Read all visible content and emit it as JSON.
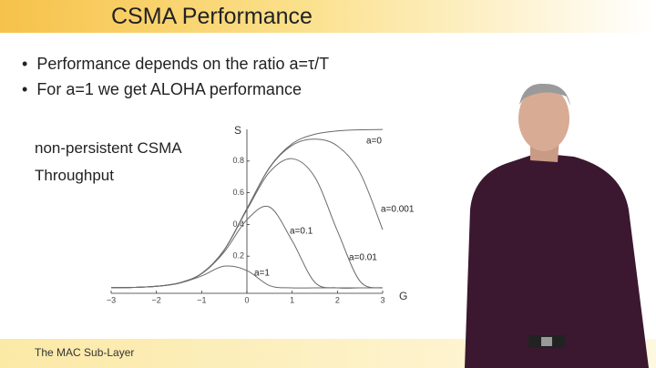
{
  "slide": {
    "title": "CSMA Performance",
    "bullets": [
      "Performance depends on the ratio a=τ/T",
      "For a=1 we get ALOHA performance"
    ],
    "caption": [
      "non-persistent CSMA",
      "Throughput"
    ],
    "footer": "The MAC Sub-Layer"
  },
  "chart_data": {
    "type": "line",
    "y_label": "S",
    "x_label": "G",
    "x": [
      -3,
      -2.5,
      -2,
      -1.5,
      -1,
      -0.5,
      0,
      0.5,
      1,
      1.5,
      2,
      2.5,
      3
    ],
    "xlim": [
      -3,
      3
    ],
    "xticks": [
      {
        "value": -3,
        "label": "−3"
      },
      {
        "value": -2,
        "label": "−2"
      },
      {
        "value": -1,
        "label": "−1"
      },
      0,
      1,
      2,
      3
    ],
    "ylim": [
      0,
      1
    ],
    "yticks": [
      0.2,
      0.4,
      0.6,
      0.8
    ],
    "series": [
      {
        "name": "a=0",
        "color": "#6a6a6a",
        "values": [
          0.001,
          0.00315,
          0.0099,
          0.0307,
          0.0909,
          0.24,
          0.5,
          0.76,
          0.909,
          0.969,
          0.99,
          0.997,
          0.999
        ]
      },
      {
        "name": "a=0.001",
        "color": "#6a6a6a",
        "values": [
          0.001,
          0.00315,
          0.0099,
          0.0307,
          0.0909,
          0.24,
          0.499,
          0.757,
          0.899,
          0.938,
          0.895,
          0.726,
          0.367
        ]
      },
      {
        "name": "a=0.01",
        "color": "#6a6a6a",
        "values": [
          0.001,
          0.00315,
          0.0099,
          0.0306,
          0.0907,
          0.239,
          0.4925,
          0.73,
          0.815,
          0.699,
          0.359,
          0.0415,
          0
        ]
      },
      {
        "name": "a=0.1",
        "color": "#6a6a6a",
        "values": [
          0.001,
          0.00315,
          0.00988,
          0.0304,
          0.0892,
          0.227,
          0.43,
          0.51,
          0.297,
          0.0353,
          0,
          0,
          0
        ]
      },
      {
        "name": "a=1",
        "color": "#6a6a6a",
        "values": [
          0.000997,
          0.00313,
          0.0097,
          0.0288,
          0.0751,
          0.137,
          0.109,
          0.0141,
          0,
          0,
          0,
          0,
          0
        ]
      }
    ]
  }
}
